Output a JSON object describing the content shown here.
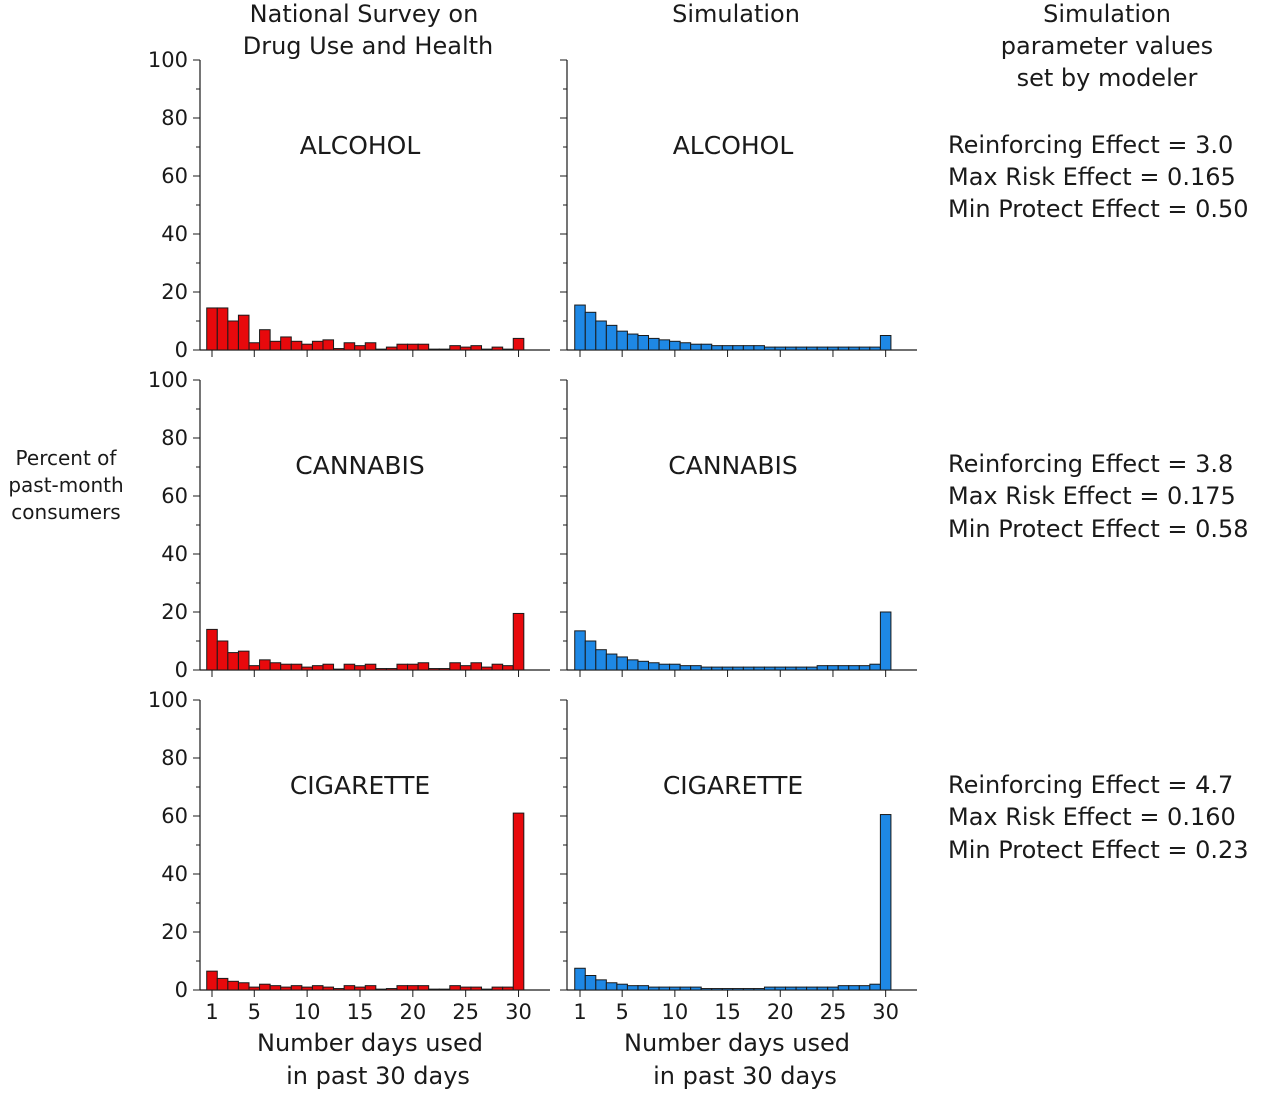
{
  "colors": {
    "survey": "#e8090c",
    "simulation": "#1e88e5",
    "edge": "#1a1a1a"
  },
  "headers": {
    "survey": [
      "National Survey on",
      "Drug Use and Health"
    ],
    "simulation": [
      "Simulation"
    ],
    "params": [
      "Simulation",
      "parameter values",
      "set by modeler"
    ]
  },
  "y_label": [
    "Percent of",
    "past-month",
    "consumers"
  ],
  "x_label": [
    "Number days used",
    "in past 30 days"
  ],
  "chart_data": [
    {
      "type": "bar",
      "drug": "ALCOHOL",
      "source": "survey",
      "x": [
        1,
        2,
        3,
        4,
        5,
        6,
        7,
        8,
        9,
        10,
        11,
        12,
        13,
        14,
        15,
        16,
        17,
        18,
        19,
        20,
        21,
        22,
        23,
        24,
        25,
        26,
        27,
        28,
        29,
        30
      ],
      "values": [
        14.5,
        14.5,
        10,
        12,
        2.5,
        7,
        3,
        4.5,
        3,
        2,
        3,
        3.5,
        0.5,
        2.5,
        1.5,
        2.5,
        0.3,
        1,
        2,
        2,
        2,
        0.3,
        0.3,
        1.5,
        1,
        1.5,
        0.3,
        1,
        0.3,
        4
      ],
      "ylim": [
        0,
        100
      ]
    },
    {
      "type": "bar",
      "drug": "ALCOHOL",
      "source": "simulation",
      "x": [
        1,
        2,
        3,
        4,
        5,
        6,
        7,
        8,
        9,
        10,
        11,
        12,
        13,
        14,
        15,
        16,
        17,
        18,
        19,
        20,
        21,
        22,
        23,
        24,
        25,
        26,
        27,
        28,
        29,
        30
      ],
      "values": [
        15.5,
        13,
        10,
        8.5,
        6.5,
        5.5,
        5,
        4,
        3.5,
        3,
        2.5,
        2,
        2,
        1.5,
        1.5,
        1.5,
        1.5,
        1.5,
        1,
        1,
        1,
        1,
        1,
        1,
        1,
        1,
        1,
        1,
        1,
        5
      ],
      "ylim": [
        0,
        100
      ]
    },
    {
      "type": "bar",
      "drug": "CANNABIS",
      "source": "survey",
      "x": [
        1,
        2,
        3,
        4,
        5,
        6,
        7,
        8,
        9,
        10,
        11,
        12,
        13,
        14,
        15,
        16,
        17,
        18,
        19,
        20,
        21,
        22,
        23,
        24,
        25,
        26,
        27,
        28,
        29,
        30
      ],
      "values": [
        14,
        10,
        6,
        6.5,
        1.5,
        3.5,
        2.5,
        2,
        2,
        1,
        1.5,
        2,
        0.3,
        2,
        1.5,
        2,
        0.5,
        0.5,
        2,
        2,
        2.5,
        0.5,
        0.5,
        2.5,
        1.5,
        2.5,
        1,
        2,
        1.5,
        19.5
      ],
      "ylim": [
        0,
        100
      ]
    },
    {
      "type": "bar",
      "drug": "CANNABIS",
      "source": "simulation",
      "x": [
        1,
        2,
        3,
        4,
        5,
        6,
        7,
        8,
        9,
        10,
        11,
        12,
        13,
        14,
        15,
        16,
        17,
        18,
        19,
        20,
        21,
        22,
        23,
        24,
        25,
        26,
        27,
        28,
        29,
        30
      ],
      "values": [
        13.5,
        10,
        7,
        5.5,
        4.5,
        3.5,
        3,
        2.5,
        2,
        2,
        1.5,
        1.5,
        1,
        1,
        1,
        1,
        1,
        1,
        1,
        1,
        1,
        1,
        1,
        1.5,
        1.5,
        1.5,
        1.5,
        1.5,
        2,
        20
      ],
      "ylim": [
        0,
        100
      ]
    },
    {
      "type": "bar",
      "drug": "CIGARETTE",
      "source": "survey",
      "x": [
        1,
        2,
        3,
        4,
        5,
        6,
        7,
        8,
        9,
        10,
        11,
        12,
        13,
        14,
        15,
        16,
        17,
        18,
        19,
        20,
        21,
        22,
        23,
        24,
        25,
        26,
        27,
        28,
        29,
        30
      ],
      "values": [
        6.5,
        4,
        3,
        2.5,
        1,
        2,
        1.5,
        1,
        1.5,
        1,
        1.5,
        1,
        0.5,
        1.5,
        1,
        1.5,
        0.3,
        0.5,
        1.5,
        1.5,
        1.5,
        0.3,
        0.3,
        1.5,
        1,
        1,
        0.3,
        1,
        1,
        61
      ],
      "ylim": [
        0,
        100
      ]
    },
    {
      "type": "bar",
      "drug": "CIGARETTE",
      "source": "simulation",
      "x": [
        1,
        2,
        3,
        4,
        5,
        6,
        7,
        8,
        9,
        10,
        11,
        12,
        13,
        14,
        15,
        16,
        17,
        18,
        19,
        20,
        21,
        22,
        23,
        24,
        25,
        26,
        27,
        28,
        29,
        30
      ],
      "values": [
        7.5,
        5,
        3.5,
        2.5,
        2,
        1.5,
        1.5,
        1,
        1,
        1,
        1,
        1,
        0.5,
        0.5,
        0.5,
        0.5,
        0.5,
        0.5,
        1,
        1,
        1,
        1,
        1,
        1,
        1,
        1.5,
        1.5,
        1.5,
        2,
        60.5
      ],
      "ylim": [
        0,
        100
      ]
    }
  ],
  "axes": {
    "y_ticks": [
      0,
      20,
      40,
      60,
      80,
      100
    ],
    "x_ticks": [
      1,
      5,
      10,
      15,
      20,
      25,
      30
    ]
  },
  "params": [
    {
      "drug": "ALCOHOL",
      "lines": [
        "Reinforcing Effect = 3.0",
        "Max Risk Effect = 0.165",
        "Min Protect Effect = 0.50"
      ]
    },
    {
      "drug": "CANNABIS",
      "lines": [
        "Reinforcing Effect = 3.8",
        "Max Risk Effect = 0.175",
        "Min Protect Effect = 0.58"
      ]
    },
    {
      "drug": "CIGARETTE",
      "lines": [
        "Reinforcing Effect = 4.7",
        "Max Risk Effect = 0.160",
        "Min Protect Effect = 0.23"
      ]
    }
  ]
}
